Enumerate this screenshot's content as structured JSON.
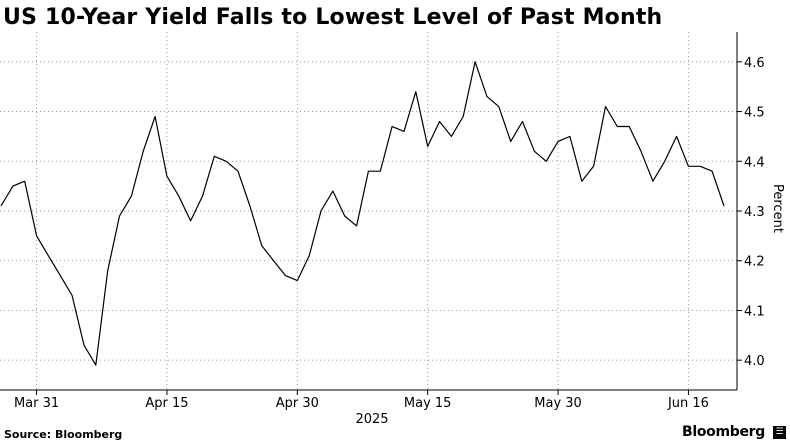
{
  "title": "US 10-Year Yield Falls to Lowest Level of Past Month",
  "source": "Source: Bloomberg",
  "brand": "Bloomberg",
  "brand_mark": "☰",
  "chart_data": {
    "type": "line",
    "title": "US 10-Year Yield Falls to Lowest Level of Past Month",
    "ylabel": "Percent",
    "xlabel": "2025",
    "ylim": [
      3.94,
      4.66
    ],
    "y_ticks": [
      4.0,
      4.1,
      4.2,
      4.3,
      4.4,
      4.5,
      4.6
    ],
    "x_ticks": [
      {
        "label": "Mar 31",
        "index": 3
      },
      {
        "label": "Apr 15",
        "index": 14
      },
      {
        "label": "Apr 30",
        "index": 25
      },
      {
        "label": "May 15",
        "index": 36
      },
      {
        "label": "May 30",
        "index": 47
      },
      {
        "label": "Jun 16",
        "index": 58
      }
    ],
    "y_axis_side": "right",
    "grid": "horizontal dotted",
    "line_color": "#000000",
    "series": [
      {
        "values": [
          4.31,
          4.35,
          4.36,
          4.25,
          4.21,
          4.17,
          4.13,
          4.03,
          3.99,
          4.18,
          4.29,
          4.33,
          4.42,
          4.49,
          4.37,
          4.33,
          4.28,
          4.33,
          4.41,
          4.4,
          4.38,
          4.31,
          4.23,
          4.2,
          4.17,
          4.16,
          4.21,
          4.3,
          4.34,
          4.29,
          4.27,
          4.38,
          4.38,
          4.47,
          4.46,
          4.54,
          4.43,
          4.48,
          4.45,
          4.49,
          4.6,
          4.53,
          4.51,
          4.44,
          4.48,
          4.42,
          4.4,
          4.44,
          4.45,
          4.36,
          4.39,
          4.51,
          4.47,
          4.47,
          4.42,
          4.36,
          4.4,
          4.45,
          4.39,
          4.39,
          4.38,
          4.31
        ]
      }
    ]
  }
}
